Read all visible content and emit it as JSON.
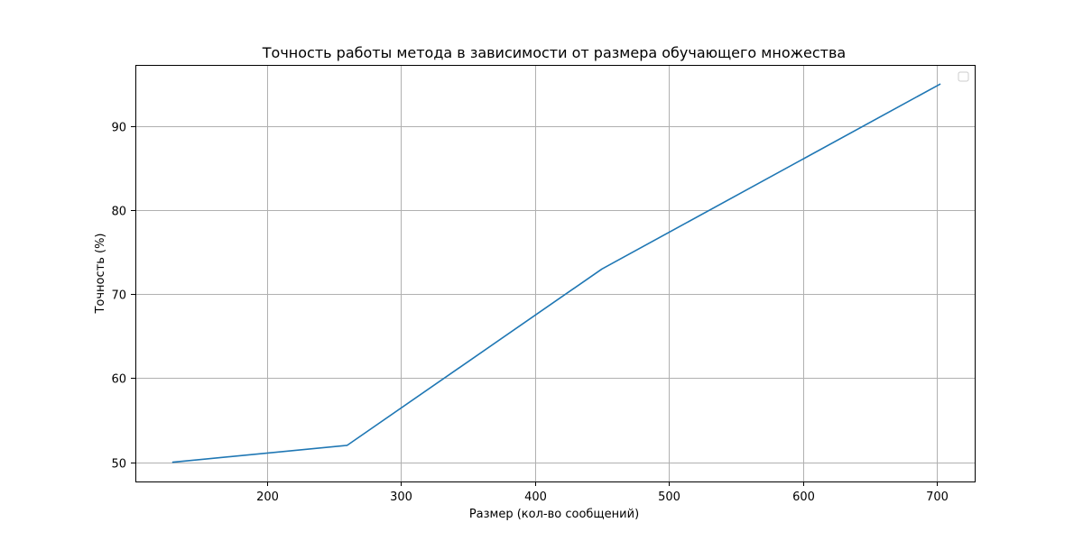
{
  "chart_data": {
    "type": "line",
    "title": "Точность работы метода в зависимости от размера обучающего множества",
    "xlabel": "Размер (кол-во сообщений)",
    "ylabel": "Точность (%)",
    "xlim": [
      102,
      728
    ],
    "ylim": [
      47.7,
      97.3
    ],
    "xticks": [
      200,
      300,
      400,
      500,
      600,
      700
    ],
    "yticks": [
      50,
      60,
      70,
      80,
      90
    ],
    "grid": true,
    "legend": "top-right",
    "series": [
      {
        "color": "#1f77b4",
        "x": [
          130,
          260,
          450,
          702
        ],
        "y": [
          50,
          52,
          73,
          95
        ]
      }
    ]
  }
}
